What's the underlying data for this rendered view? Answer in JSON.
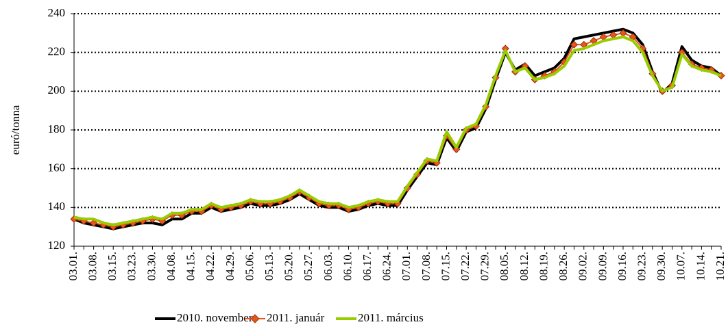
{
  "chart_data": {
    "type": "line",
    "y_label": "euró/tonna",
    "categories": [
      "03.01.",
      null,
      "03.08.",
      null,
      "03.15.",
      null,
      "03.23.",
      null,
      "03.30.",
      null,
      "04.08.",
      null,
      "04.15.",
      null,
      "04.22.",
      null,
      "04.29.",
      null,
      "05.06.",
      null,
      "05.13.",
      null,
      "05.20.",
      null,
      "05.27.",
      null,
      "06.03.",
      null,
      "06.10.",
      null,
      "06.17.",
      null,
      "06.24.",
      null,
      "07.01.",
      null,
      "07.08.",
      null,
      "07.15.",
      null,
      "07.22.",
      null,
      "07.29.",
      null,
      "08.05.",
      null,
      "08.12.",
      null,
      "08.19.",
      null,
      "08.26.",
      null,
      "09.02.",
      null,
      "09.09.",
      null,
      "09.16.",
      null,
      "09.23.",
      null,
      "09.30.",
      null,
      "10.07.",
      null,
      "10.14.",
      null,
      "10.21."
    ],
    "series": [
      {
        "name": "2010. november",
        "color": "#000000",
        "values": [
          134,
          132,
          131,
          130,
          129,
          130,
          131,
          132,
          132,
          131,
          134,
          134,
          137,
          137,
          140,
          138,
          139,
          140,
          142,
          141,
          141,
          142,
          144,
          147,
          144,
          141,
          140,
          140,
          138,
          139,
          141,
          142,
          141,
          141,
          149,
          156,
          163,
          162,
          176,
          169,
          179,
          181,
          191,
          206,
          220,
          211,
          214,
          208,
          210,
          212,
          217,
          227,
          228,
          229,
          230,
          231,
          232,
          230,
          224,
          210,
          199,
          204,
          223,
          216,
          213,
          212,
          208
        ]
      },
      {
        "name": "2011. január",
        "color": "#e8541c",
        "marker": "diamond",
        "values": [
          134,
          133,
          132,
          131,
          130,
          131,
          132,
          133,
          134,
          133,
          136,
          136,
          138,
          138,
          141,
          139,
          140,
          141,
          143,
          142,
          142,
          143,
          145,
          148,
          145,
          142,
          141,
          141,
          139,
          140,
          142,
          143,
          142,
          142,
          150,
          157,
          164,
          163,
          177,
          170,
          180,
          182,
          192,
          207,
          222,
          210,
          213,
          206,
          208,
          210,
          215,
          224,
          224,
          226,
          228,
          229,
          230,
          228,
          222,
          209,
          200,
          203,
          220,
          214,
          212,
          211,
          208
        ]
      },
      {
        "name": "2011. március",
        "color": "#99cc00",
        "values": [
          135,
          134,
          134,
          132,
          131,
          132,
          133,
          134,
          135,
          134,
          137,
          137,
          139,
          139,
          142,
          140,
          141,
          142,
          144,
          143,
          143,
          144,
          146,
          149,
          146,
          143,
          142,
          142,
          140,
          141,
          143,
          144,
          143,
          143,
          151,
          158,
          165,
          164,
          179,
          171,
          181,
          183,
          193,
          208,
          221,
          210,
          212,
          206,
          207,
          209,
          213,
          221,
          222,
          224,
          226,
          227,
          228,
          226,
          220,
          208,
          200,
          202,
          219,
          213,
          211,
          210,
          208
        ]
      }
    ],
    "ylim": [
      120,
      240
    ],
    "yticks": [
      120,
      140,
      160,
      180,
      200,
      220,
      240
    ],
    "grid": true,
    "legend": "bottom"
  }
}
